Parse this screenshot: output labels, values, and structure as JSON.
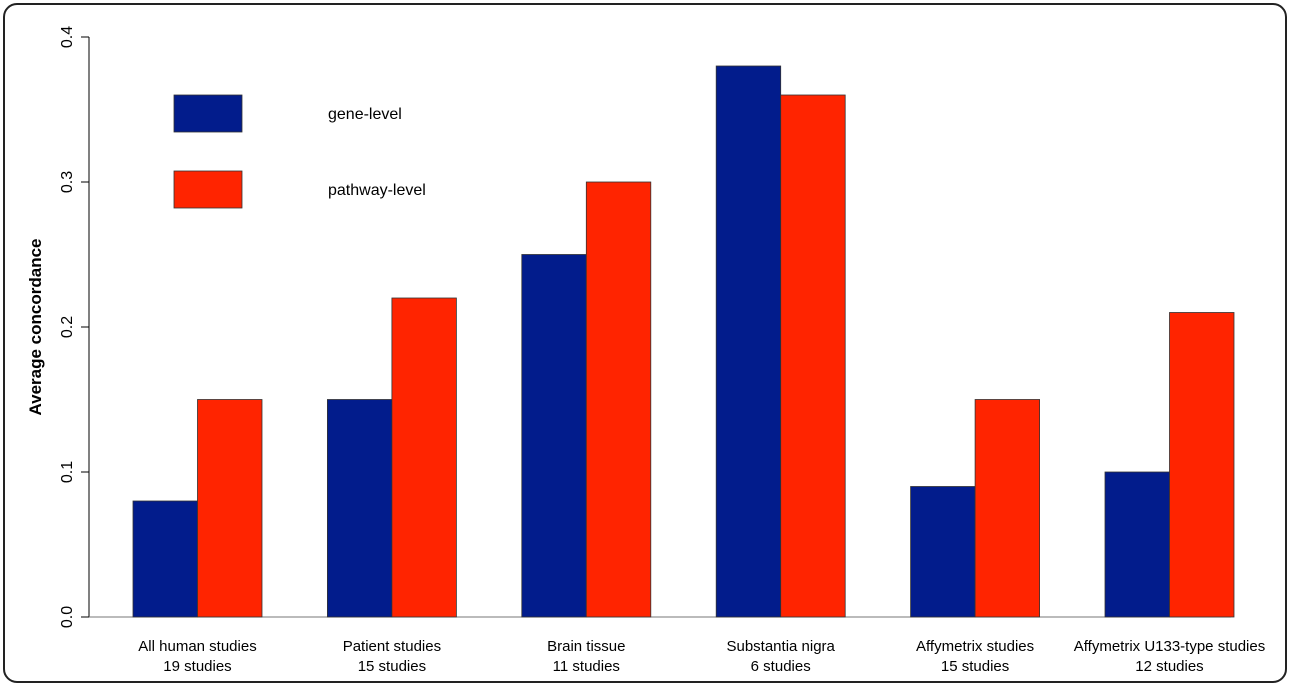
{
  "chart_data": {
    "type": "bar",
    "ylabel": "Average concordance",
    "xlabel": "",
    "ylim": [
      0,
      0.4
    ],
    "yticks": [
      "0.0",
      "0.1",
      "0.2",
      "0.3",
      "0.4"
    ],
    "grid": false,
    "legend_position": "top-left",
    "categories": [
      [
        "All human studies",
        "19 studies"
      ],
      [
        "Patient studies",
        "15 studies"
      ],
      [
        "Brain tissue",
        "11 studies"
      ],
      [
        "Substantia nigra",
        "6 studies"
      ],
      [
        "Affymetrix studies",
        "15 studies"
      ],
      [
        "Affymetrix U133-type studies",
        "12 studies"
      ]
    ],
    "series": [
      {
        "name": "gene-level",
        "color": "#021c8c",
        "values": [
          0.08,
          0.15,
          0.25,
          0.38,
          0.09,
          0.1
        ]
      },
      {
        "name": "pathway-level",
        "color": "#ff2400",
        "values": [
          0.15,
          0.22,
          0.3,
          0.36,
          0.15,
          0.21
        ]
      }
    ]
  }
}
